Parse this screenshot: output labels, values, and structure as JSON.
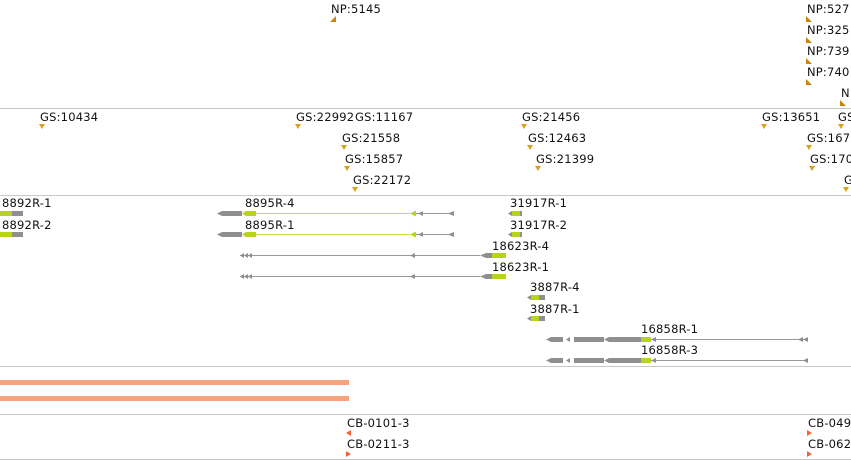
{
  "colors": {
    "np_marker": "#c9860c",
    "gs_marker": "#d9a21b",
    "exon_gray": "#8f8f8f",
    "exon_lime": "#b9d21a",
    "line_lime": "#c7dc3c",
    "line_gray": "#9a9a9a",
    "orange_bar": "#f4a47a",
    "cb_marker": "#f0643c",
    "divider": "#c8c8c8"
  },
  "np_track": {
    "labels": [
      "NP:5145",
      "NP:527",
      "NP:325",
      "NP:739",
      "NP:740",
      "N"
    ]
  },
  "gs_track": {
    "labels": [
      "GS:10434",
      "GS:22992",
      "GS:11167",
      "GS:21558",
      "GS:15857",
      "GS:22172",
      "GS:21456",
      "GS:12463",
      "GS:21399",
      "GS:13651",
      "GS:167",
      "GS:170",
      "GS",
      "G"
    ]
  },
  "gene_track": {
    "labels": [
      "8892R-1",
      "8892R-2",
      "8895R-4",
      "8895R-1",
      "31917R-1",
      "31917R-2",
      "18623R-4",
      "18623R-1",
      "3887R-4",
      "3887R-1",
      "16858R-1",
      "16858R-3"
    ]
  },
  "cb_track": {
    "labels": [
      "CB-0101-3",
      "CB-0211-3",
      "CB-049",
      "CB-062"
    ]
  }
}
